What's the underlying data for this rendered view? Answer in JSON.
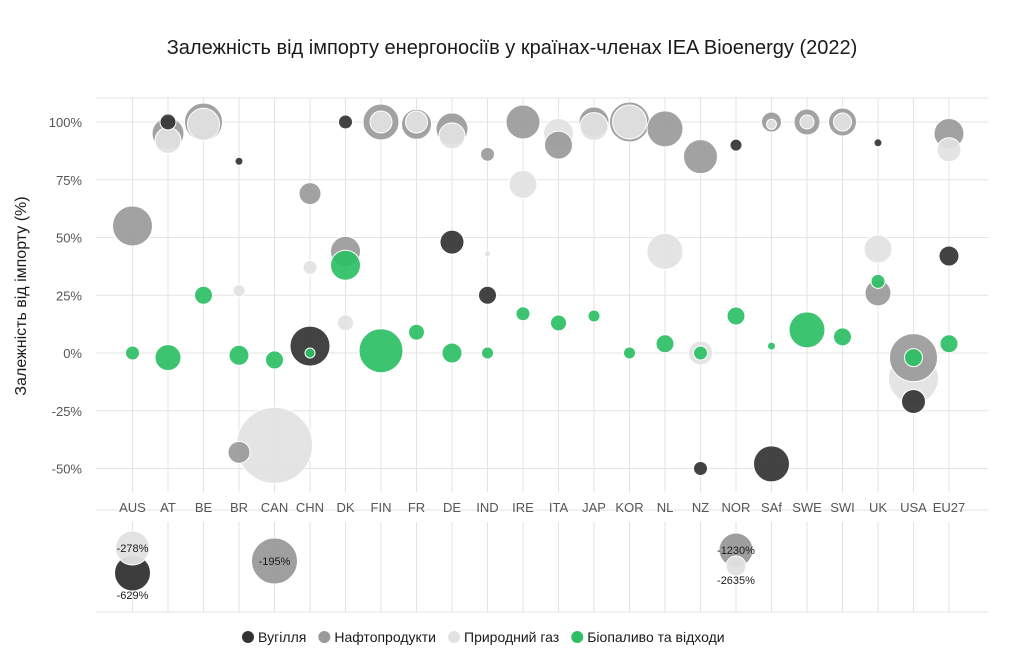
{
  "chart_data": {
    "type": "scatter",
    "title": "Залежність від імпорту енергоносіїв у країнах-членах IEA Bioenergy (2022)",
    "ylabel": "Залежність від імпорту (%)",
    "xlabel": "",
    "ylim": [
      -60,
      110
    ],
    "y_ticks": [
      {
        "value": 100,
        "label": "100%"
      },
      {
        "value": 75,
        "label": "75%"
      },
      {
        "value": 50,
        "label": "50%"
      },
      {
        "value": 25,
        "label": "25%"
      },
      {
        "value": 0,
        "label": "0%"
      },
      {
        "value": -25,
        "label": "-25%"
      },
      {
        "value": -50,
        "label": "-50%"
      }
    ],
    "categories": [
      "AUS",
      "AT",
      "BE",
      "BR",
      "CAN",
      "CHN",
      "DK",
      "FIN",
      "FR",
      "DE",
      "IND",
      "IRE",
      "ITA",
      "JAP",
      "KOR",
      "NL",
      "NZ",
      "NOR",
      "SAf",
      "SWE",
      "SWI",
      "UK",
      "USA",
      "EU27"
    ],
    "grid": true,
    "legend_position": "bottom",
    "series": [
      {
        "name": "Вугілля",
        "color": "#333333",
        "points": [
          {
            "x": "AT",
            "y": 100,
            "size": 8
          },
          {
            "x": "BR",
            "y": 83,
            "size": 4
          },
          {
            "x": "CHN",
            "y": 3,
            "size": 20
          },
          {
            "x": "DK",
            "y": 100,
            "size": 7
          },
          {
            "x": "DE",
            "y": 48,
            "size": 12
          },
          {
            "x": "IND",
            "y": 25,
            "size": 9
          },
          {
            "x": "NZ",
            "y": -50,
            "size": 7
          },
          {
            "x": "NOR",
            "y": 90,
            "size": 6
          },
          {
            "x": "SAf",
            "y": -48,
            "size": 18
          },
          {
            "x": "UK",
            "y": 91,
            "size": 4
          },
          {
            "x": "USA",
            "y": -21,
            "size": 12
          },
          {
            "x": "EU27",
            "y": 42,
            "size": 10
          }
        ]
      },
      {
        "name": "Нафтопродукти",
        "color": "#9a9a9a",
        "points": [
          {
            "x": "AUS",
            "y": 55,
            "size": 20
          },
          {
            "x": "AT",
            "y": 95,
            "size": 16
          },
          {
            "x": "BE",
            "y": 100,
            "size": 19
          },
          {
            "x": "BR",
            "y": -43,
            "size": 11
          },
          {
            "x": "CHN",
            "y": 69,
            "size": 11
          },
          {
            "x": "DK",
            "y": 44,
            "size": 15
          },
          {
            "x": "FIN",
            "y": 100,
            "size": 18
          },
          {
            "x": "FR",
            "y": 99,
            "size": 15
          },
          {
            "x": "DE",
            "y": 97,
            "size": 16
          },
          {
            "x": "IND",
            "y": 86,
            "size": 7
          },
          {
            "x": "IRE",
            "y": 100,
            "size": 17
          },
          {
            "x": "ITA",
            "y": 90,
            "size": 14
          },
          {
            "x": "JAP",
            "y": 100,
            "size": 15
          },
          {
            "x": "KOR",
            "y": 100,
            "size": 20
          },
          {
            "x": "NL",
            "y": 97,
            "size": 18
          },
          {
            "x": "NZ",
            "y": 85,
            "size": 17
          },
          {
            "x": "SAf",
            "y": 100,
            "size": 10
          },
          {
            "x": "SWE",
            "y": 100,
            "size": 13
          },
          {
            "x": "SWI",
            "y": 100,
            "size": 14
          },
          {
            "x": "UK",
            "y": 26,
            "size": 13
          },
          {
            "x": "USA",
            "y": -2,
            "size": 24
          },
          {
            "x": "EU27",
            "y": 95,
            "size": 15
          }
        ]
      },
      {
        "name": "Природний газ",
        "color": "#e2e2e2",
        "points": [
          {
            "x": "AT",
            "y": 92,
            "size": 13
          },
          {
            "x": "BE",
            "y": 99,
            "size": 16
          },
          {
            "x": "BR",
            "y": 27,
            "size": 6
          },
          {
            "x": "CAN",
            "y": -40,
            "size": 38
          },
          {
            "x": "CHN",
            "y": 37,
            "size": 7
          },
          {
            "x": "DK",
            "y": 13,
            "size": 8
          },
          {
            "x": "FIN",
            "y": 100,
            "size": 11
          },
          {
            "x": "FR",
            "y": 100,
            "size": 11
          },
          {
            "x": "DE",
            "y": 94,
            "size": 13
          },
          {
            "x": "IND",
            "y": 43,
            "size": 3
          },
          {
            "x": "IRE",
            "y": 73,
            "size": 14
          },
          {
            "x": "ITA",
            "y": 95,
            "size": 15
          },
          {
            "x": "JAP",
            "y": 98,
            "size": 14
          },
          {
            "x": "KOR",
            "y": 100,
            "size": 17
          },
          {
            "x": "NL",
            "y": 44,
            "size": 18
          },
          {
            "x": "NZ",
            "y": 0,
            "size": 12
          },
          {
            "x": "SAf",
            "y": 99,
            "size": 5
          },
          {
            "x": "SWE",
            "y": 100,
            "size": 7
          },
          {
            "x": "SWI",
            "y": 100,
            "size": 9
          },
          {
            "x": "UK",
            "y": 45,
            "size": 14
          },
          {
            "x": "USA",
            "y": -11,
            "size": 25
          },
          {
            "x": "EU27",
            "y": 88,
            "size": 12
          }
        ]
      },
      {
        "name": "Біопаливо та відходи",
        "color": "#2dbf64",
        "points": [
          {
            "x": "AUS",
            "y": 0,
            "size": 7
          },
          {
            "x": "AT",
            "y": -2,
            "size": 13
          },
          {
            "x": "BE",
            "y": 25,
            "size": 9
          },
          {
            "x": "BR",
            "y": -1,
            "size": 10
          },
          {
            "x": "CAN",
            "y": -3,
            "size": 9
          },
          {
            "x": "CHN",
            "y": 0,
            "size": 5
          },
          {
            "x": "DK",
            "y": 38,
            "size": 15
          },
          {
            "x": "FIN",
            "y": 1,
            "size": 22
          },
          {
            "x": "FR",
            "y": 9,
            "size": 8
          },
          {
            "x": "DE",
            "y": 0,
            "size": 10
          },
          {
            "x": "IND",
            "y": 0,
            "size": 6
          },
          {
            "x": "IRE",
            "y": 17,
            "size": 7
          },
          {
            "x": "ITA",
            "y": 13,
            "size": 8
          },
          {
            "x": "JAP",
            "y": 16,
            "size": 6
          },
          {
            "x": "KOR",
            "y": 0,
            "size": 6
          },
          {
            "x": "NL",
            "y": 4,
            "size": 9
          },
          {
            "x": "NZ",
            "y": 0,
            "size": 7
          },
          {
            "x": "NOR",
            "y": 16,
            "size": 9
          },
          {
            "x": "SAf",
            "y": 3,
            "size": 4
          },
          {
            "x": "SWE",
            "y": 10,
            "size": 18
          },
          {
            "x": "SWI",
            "y": 7,
            "size": 9
          },
          {
            "x": "UK",
            "y": 31,
            "size": 7
          },
          {
            "x": "USA",
            "y": -2,
            "size": 9
          },
          {
            "x": "EU27",
            "y": 4,
            "size": 9
          }
        ]
      }
    ],
    "outliers": [
      {
        "x": "AUS",
        "series": "Природний газ",
        "y": -278,
        "label": "-278%",
        "size": 17,
        "label_pos": "inside"
      },
      {
        "x": "AUS",
        "series": "Вугілля",
        "y": -629,
        "label": "-629%",
        "size": 18,
        "label_pos": "below"
      },
      {
        "x": "CAN",
        "series": "Нафтопродукти",
        "y": -195,
        "label": "-195%",
        "size": 23,
        "label_pos": "inside"
      },
      {
        "x": "NOR",
        "series": "Нафтопродукти",
        "y": -1230,
        "label": "-1230%",
        "size": 17,
        "label_pos": "inside"
      },
      {
        "x": "NOR",
        "series": "Природний газ",
        "y": -2635,
        "label": "-2635%",
        "size": 10,
        "label_pos": "below"
      }
    ]
  }
}
